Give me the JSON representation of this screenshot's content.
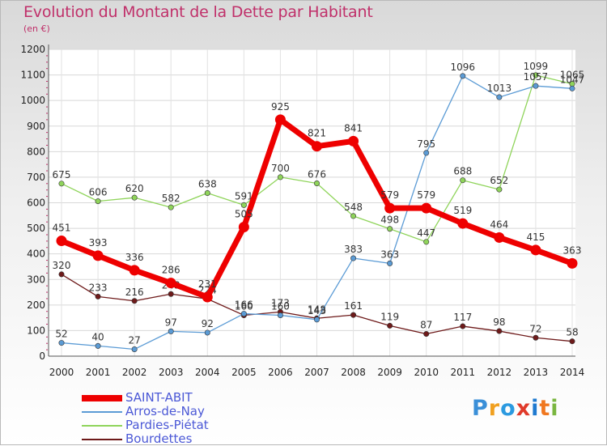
{
  "header": {
    "title": "Evolution du Montant de la Dette par Habitant",
    "subtitle": "(en €)"
  },
  "logo": {
    "text": "Proxiti",
    "letter_colors": [
      "#3a8fd8",
      "#f0a020",
      "#2c9ae0",
      "#e03a2a",
      "#1f7ad0",
      "#f07820",
      "#7ab640"
    ]
  },
  "chart_data": {
    "type": "line",
    "x": [
      "2000",
      "2001",
      "2002",
      "2003",
      "2004",
      "2005",
      "2006",
      "2007",
      "2008",
      "2009",
      "2010",
      "2011",
      "2012",
      "2013",
      "2014"
    ],
    "ylim": [
      0,
      1200
    ],
    "yticks": [
      "0",
      "100",
      "200",
      "300",
      "400",
      "500",
      "600",
      "700",
      "800",
      "900",
      "1000",
      "1100",
      "1200"
    ],
    "grid": true,
    "legend_position": "bottom-left",
    "series": [
      {
        "name": "Bourdettes",
        "color": "#6e1a1a",
        "values": [
          320,
          233,
          216,
          243,
          224,
          160,
          173,
          148,
          161,
          119,
          87,
          117,
          98,
          72,
          58
        ],
        "labels": [
          "320",
          "233",
          "216",
          "243",
          "224",
          "160",
          "173",
          "148",
          "161",
          "119",
          "87",
          "117",
          "98",
          "72",
          "58"
        ]
      },
      {
        "name": "Pardies-Piétat",
        "color": "#8fd45a",
        "values": [
          675,
          606,
          620,
          582,
          638,
          591,
          700,
          676,
          548,
          498,
          447,
          688,
          652,
          1099,
          1065
        ],
        "labels": [
          "675",
          "606",
          "620",
          "582",
          "638",
          "591",
          "700",
          "676",
          "548",
          "498",
          "447",
          "688",
          "652",
          "1099",
          "1065"
        ]
      },
      {
        "name": "Arros-de-Nay",
        "color": "#5b9bd5",
        "values": [
          52,
          40,
          27,
          97,
          92,
          166,
          160,
          143,
          383,
          363,
          795,
          1096,
          1013,
          1057,
          1047
        ],
        "labels": [
          "52",
          "40",
          "27",
          "97",
          "92",
          "166",
          "160",
          "143",
          "383",
          "363",
          "795",
          "1096",
          "1013",
          "1057",
          "1047"
        ]
      },
      {
        "name": "SAINT-ABIT",
        "color": "#ee0000",
        "values": [
          451,
          393,
          336,
          286,
          231,
          505,
          925,
          821,
          841,
          579,
          579,
          519,
          464,
          415,
          363
        ],
        "labels": [
          "451",
          "393",
          "336",
          "286",
          "231",
          "505",
          "925",
          "821",
          "841",
          "579",
          "579",
          "519",
          "464",
          "415",
          "363"
        ]
      }
    ]
  }
}
